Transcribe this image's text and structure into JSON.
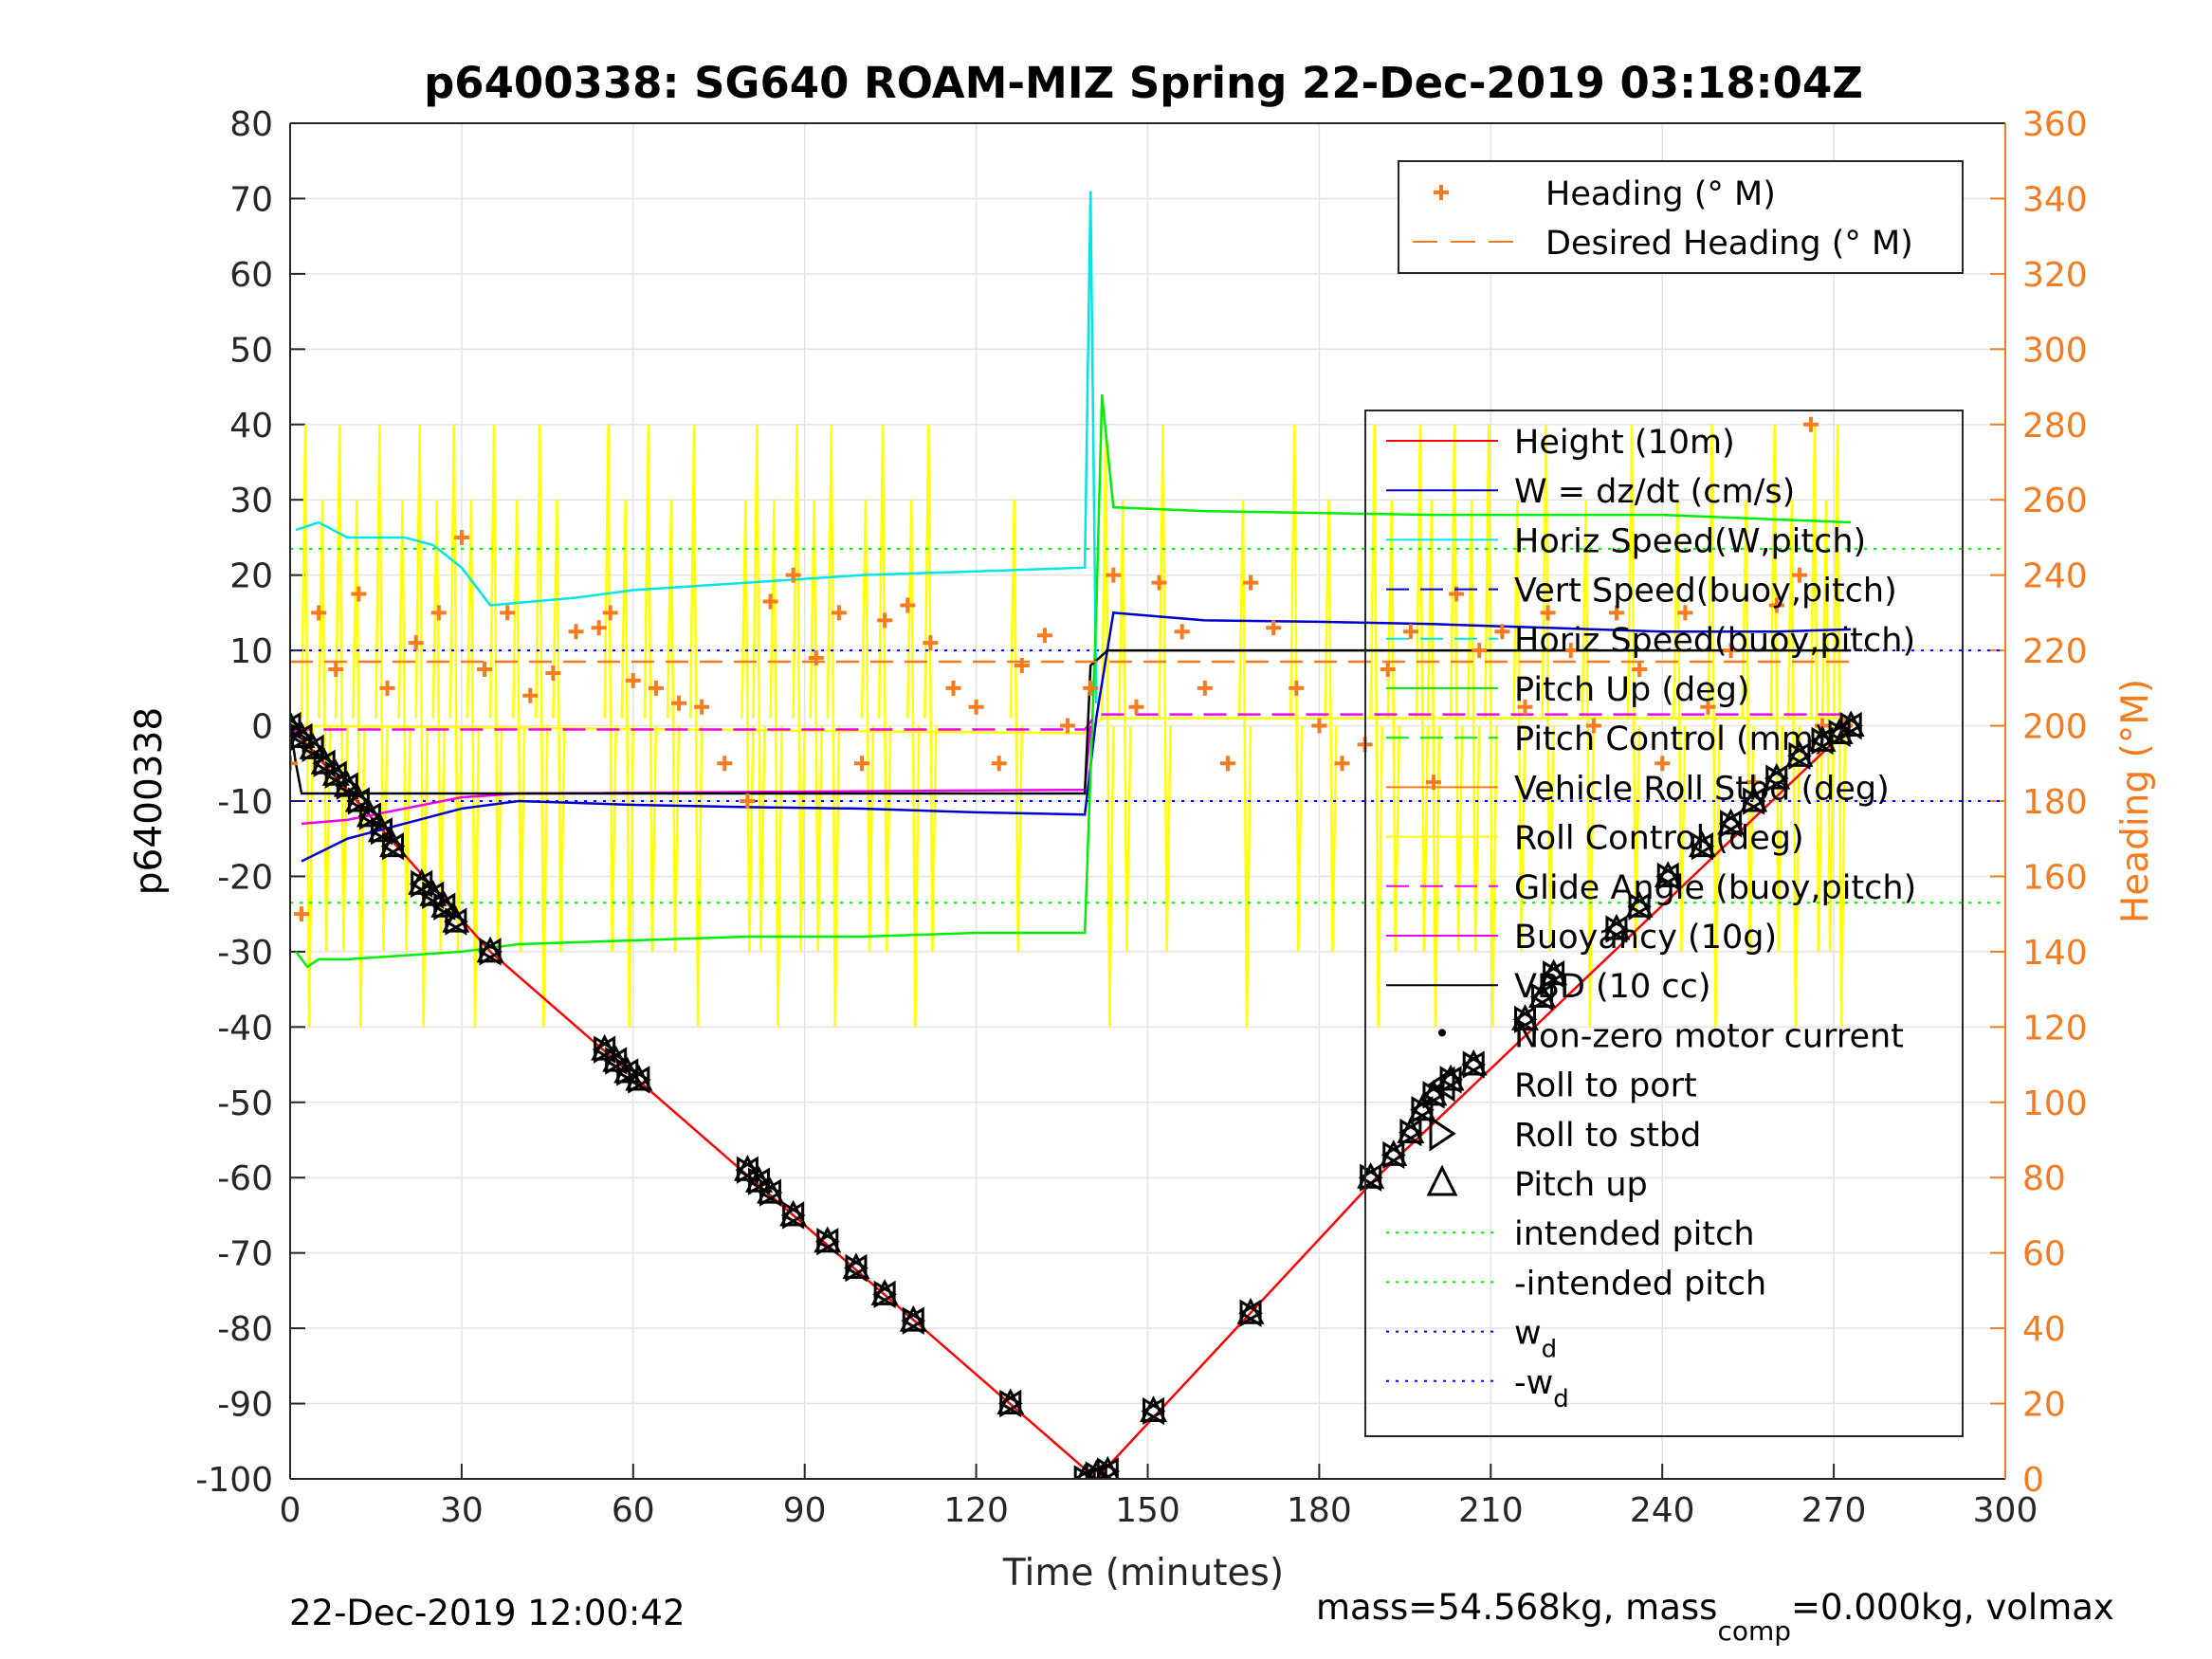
{
  "chart_data": {
    "type": "line",
    "title": "p6400338: SG640 ROAM-MIZ Spring 22-Dec-2019 03:18:04Z",
    "xlabel": "Time (minutes)",
    "ylabel_left": "p6400338",
    "ylabel_right": "Heading (°M)",
    "xlim": [
      0,
      300
    ],
    "ylim_left": [
      -100,
      80
    ],
    "ylim_right": [
      0,
      360
    ],
    "x_ticks": [
      "0",
      "30",
      "60",
      "90",
      "120",
      "150",
      "180",
      "210",
      "240",
      "270",
      "300"
    ],
    "y_ticks_left": [
      "80",
      "70",
      "60",
      "50",
      "40",
      "30",
      "20",
      "10",
      "0",
      "-10",
      "-20",
      "-30",
      "-40",
      "-50",
      "-60",
      "-70",
      "-80",
      "-90",
      "-100"
    ],
    "y_ticks_right": [
      "360",
      "340",
      "320",
      "300",
      "280",
      "260",
      "240",
      "220",
      "200",
      "180",
      "160",
      "140",
      "120",
      "100",
      "80",
      "60",
      "40",
      "20",
      "0"
    ],
    "grid": true,
    "footer_left": "22-Dec-2019 12:00:42",
    "footer_right": {
      "a": "mass=54.568kg, mass",
      "sub": "comp",
      "b": "=0.000kg, volmax"
    },
    "colors": {
      "height": "#ff0000",
      "w": "#0000cc",
      "horiz": "#00e5e5",
      "pitch": "#00ee00",
      "roll": "#ffff00",
      "glide": "#ee00ee",
      "vbd": "#000000",
      "heading": "#f47b20",
      "intended": "#00ee00",
      "wd": "#0000ff"
    },
    "legend_heading": {
      "position": "top-right",
      "entries": [
        "Heading (° M)",
        "Desired Heading (° M)"
      ]
    },
    "legend_main": {
      "position": "right",
      "entries": [
        "Height (10m)",
        "W = dz/dt (cm/s)",
        "Horiz Speed(W,pitch)",
        "Vert Speed(buoy,pitch)",
        "Horiz Speed(buoy,pitch)",
        "Pitch Up (deg)",
        "Pitch Control (mm)",
        "Vehicle Roll Stbd (deg)",
        "Roll Control (deg)",
        "Glide Angle (buoy,pitch)",
        "Buoyancy (10g)",
        "VBD (10 cc)",
        "Non-zero motor current",
        "Roll to port",
        "Roll to stbd",
        "Pitch up",
        "intended pitch",
        "-intended pitch"
      ],
      "wd_base": "w",
      "wd_sub": "d",
      "neg_wd_base": "-w"
    },
    "series": [
      {
        "name": "Height (10m)",
        "axis": "left",
        "x": [
          0,
          35,
          141,
          190,
          273
        ],
        "y": [
          0,
          -30,
          -100,
          -60,
          0
        ]
      },
      {
        "name": "W = dz/dt (cm/s)",
        "axis": "left",
        "x": [
          2,
          10,
          20,
          30,
          40,
          60,
          80,
          100,
          120,
          139,
          141,
          144,
          160,
          180,
          200,
          220,
          240,
          260,
          273
        ],
        "y": [
          -18,
          -15,
          -13,
          -11,
          -10,
          -10.5,
          -10.8,
          -11,
          -11.5,
          -11.8,
          1,
          15,
          14,
          13.8,
          13.5,
          13,
          12.5,
          12.5,
          12.8
        ]
      },
      {
        "name": "Horiz Speed(W,pitch)",
        "axis": "left",
        "x": [
          1,
          5,
          10,
          20,
          25,
          30,
          35,
          50,
          60,
          80,
          100,
          120,
          139,
          140,
          141
        ],
        "y": [
          26,
          27,
          25,
          25,
          24,
          21,
          16,
          17,
          18,
          19,
          20,
          20.5,
          21,
          71,
          3
        ]
      },
      {
        "name": "Pitch Up (deg)",
        "axis": "left",
        "x": [
          1,
          3,
          5,
          10,
          30,
          40,
          60,
          80,
          100,
          120,
          139,
          141,
          142,
          144,
          160,
          200,
          240,
          273
        ],
        "y": [
          -30,
          -32,
          -31,
          -31,
          -30,
          -29,
          -28.5,
          -28,
          -28,
          -27.5,
          -27.5,
          15,
          44,
          29,
          28.5,
          28,
          28,
          27
        ]
      },
      {
        "name": "Glide Angle (buoy,pitch)",
        "axis": "left",
        "x": [
          0,
          2,
          40,
          80,
          120,
          139,
          141,
          273
        ],
        "y": [
          -1,
          -0.5,
          -0.5,
          -0.5,
          -0.5,
          -0.5,
          1.5,
          1.5
        ]
      },
      {
        "name": "Buoyancy (10g)",
        "axis": "left",
        "x": [
          2,
          10,
          20,
          30,
          40,
          139,
          140
        ],
        "y": [
          -13,
          -12.5,
          -11,
          -9.5,
          -9,
          -8.5,
          0
        ]
      },
      {
        "name": "VBD (10 cc)",
        "axis": "left",
        "x": [
          0,
          1,
          2,
          139,
          140,
          143,
          273
        ],
        "y": [
          0,
          -5,
          -9,
          -9,
          8,
          10,
          10
        ]
      },
      {
        "name": "Heading (° M)",
        "axis": "right",
        "x": [
          0,
          2,
          5,
          8,
          12,
          17,
          22,
          26,
          30,
          34,
          38,
          42,
          46,
          50,
          54,
          56,
          60,
          64,
          68,
          72,
          76,
          80,
          84,
          88,
          92,
          96,
          100,
          104,
          108,
          112,
          116,
          120,
          124,
          128,
          132,
          136,
          140,
          144,
          148,
          152,
          156,
          160,
          164,
          168,
          172,
          176,
          180,
          184,
          188,
          192,
          196,
          200,
          204,
          208,
          212,
          216,
          220,
          224,
          228,
          232,
          236,
          240,
          244,
          248,
          252,
          256,
          260,
          264,
          266,
          268,
          272
        ],
        "y": [
          190,
          150,
          230,
          215,
          235,
          210,
          222,
          230,
          250,
          215,
          230,
          208,
          214,
          225,
          226,
          230,
          212,
          210,
          206,
          205,
          190,
          180,
          233,
          240,
          218,
          230,
          190,
          228,
          232,
          222,
          210,
          205,
          190,
          216,
          224,
          200,
          210,
          240,
          205,
          238,
          225,
          210,
          190,
          238,
          226,
          210,
          200,
          190,
          195,
          215,
          225,
          185,
          235,
          220,
          225,
          205,
          230,
          220,
          200,
          230,
          215,
          190,
          230,
          205,
          220,
          185,
          232,
          240,
          280,
          200,
          200
        ]
      },
      {
        "name": "Desired Heading (° M)",
        "axis": "right",
        "x": [
          0,
          273
        ],
        "y": [
          217,
          217
        ]
      }
    ],
    "roll_control_spikes": [
      2,
      5,
      8,
      11,
      15,
      19,
      22,
      25,
      28,
      31,
      35,
      39,
      43,
      46,
      55,
      58,
      62,
      66,
      70,
      79,
      81,
      84,
      88,
      91,
      94,
      100,
      103,
      108,
      111,
      126,
      142,
      145,
      152,
      166,
      175,
      181,
      189,
      192,
      197,
      199,
      203,
      206,
      209,
      214,
      219,
      226,
      234,
      242,
      248,
      254,
      259,
      262,
      266,
      268,
      270
    ],
    "intended_pitch": [
      23.5,
      -23.5
    ],
    "w_d": [
      10,
      -10
    ],
    "markers": [
      [
        0,
        0
      ],
      [
        2,
        -1.5
      ],
      [
        4,
        -3
      ],
      [
        6,
        -5
      ],
      [
        8,
        -6.5
      ],
      [
        10,
        -8
      ],
      [
        12,
        -10
      ],
      [
        14,
        -12
      ],
      [
        16,
        -14
      ],
      [
        18,
        -16
      ],
      [
        23,
        -21
      ],
      [
        25,
        -22.5
      ],
      [
        27,
        -24
      ],
      [
        29,
        -26
      ],
      [
        35,
        -30
      ],
      [
        55,
        -43
      ],
      [
        57,
        -44.5
      ],
      [
        59,
        -46
      ],
      [
        61,
        -47
      ],
      [
        80,
        -59
      ],
      [
        82,
        -60.5
      ],
      [
        84,
        -62
      ],
      [
        88,
        -65
      ],
      [
        94,
        -68.5
      ],
      [
        99,
        -72
      ],
      [
        104,
        -75.5
      ],
      [
        109,
        -79
      ],
      [
        126,
        -90
      ],
      [
        139,
        -100
      ],
      [
        141,
        -99.5
      ],
      [
        143,
        -99
      ],
      [
        151,
        -91
      ],
      [
        168,
        -78
      ],
      [
        189,
        -60
      ],
      [
        193,
        -57
      ],
      [
        196,
        -54
      ],
      [
        198,
        -51
      ],
      [
        200,
        -49
      ],
      [
        203,
        -47
      ],
      [
        207,
        -45
      ],
      [
        216,
        -39
      ],
      [
        219,
        -36
      ],
      [
        221,
        -33
      ],
      [
        232,
        -27
      ],
      [
        236,
        -24
      ],
      [
        241,
        -20
      ],
      [
        247,
        -16
      ],
      [
        252,
        -13
      ],
      [
        256,
        -10
      ],
      [
        260,
        -7
      ],
      [
        264,
        -4
      ],
      [
        268,
        -2
      ],
      [
        271,
        -1
      ],
      [
        273,
        0
      ]
    ]
  }
}
